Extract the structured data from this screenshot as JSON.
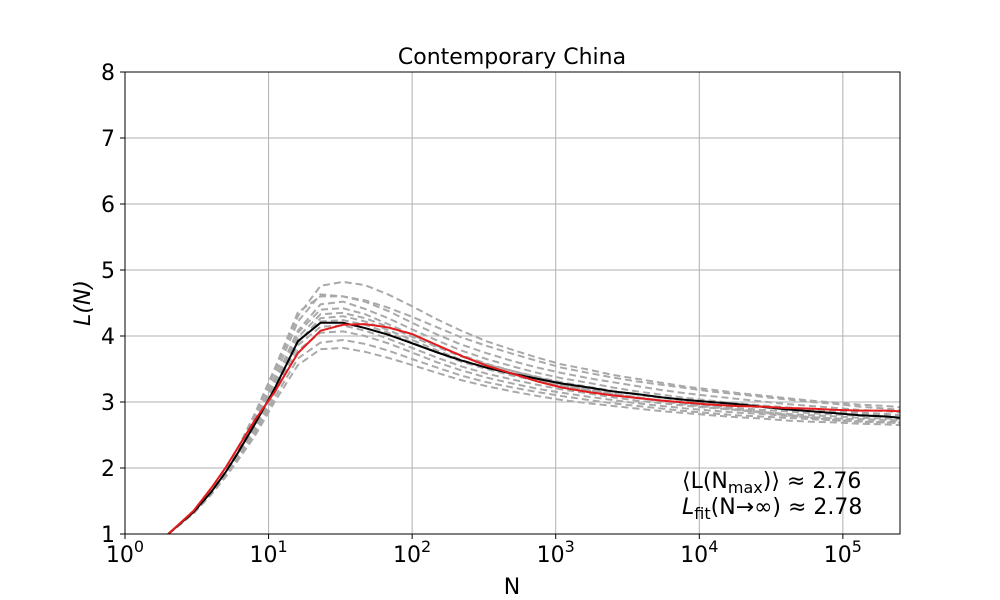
{
  "chart_data": {
    "type": "line",
    "title": "Contemporary China",
    "xlabel": "N",
    "ylabel": "L(N)",
    "xscale": "log",
    "xlim": [
      1,
      250000
    ],
    "ylim": [
      1,
      8
    ],
    "xticks": [
      {
        "value": 1,
        "base": "10",
        "exp": "0"
      },
      {
        "value": 10,
        "base": "10",
        "exp": "1"
      },
      {
        "value": 100,
        "base": "10",
        "exp": "2"
      },
      {
        "value": 1000,
        "base": "10",
        "exp": "3"
      },
      {
        "value": 10000,
        "base": "10",
        "exp": "4"
      },
      {
        "value": 100000,
        "base": "10",
        "exp": "5"
      }
    ],
    "yticks": [
      1,
      2,
      3,
      4,
      5,
      6,
      7,
      8
    ],
    "grid": true,
    "ensemble_color": "#a9a9a9",
    "mean_color": "#000000",
    "fit_color": "#e41a1c",
    "x": [
      2,
      3,
      4,
      5,
      6,
      8,
      11,
      16,
      23,
      33,
      47,
      68,
      100,
      150,
      220,
      330,
      500,
      750,
      1100,
      1700,
      2500,
      3700,
      5500,
      8200,
      12000,
      18000,
      27000,
      40000,
      60000,
      90000,
      130000,
      200000,
      250000
    ],
    "series": [
      {
        "role": "mean",
        "values": [
          1.0,
          1.33,
          1.64,
          1.93,
          2.2,
          2.66,
          3.2,
          3.92,
          4.2,
          4.2,
          4.12,
          4.02,
          3.89,
          3.75,
          3.63,
          3.52,
          3.43,
          3.35,
          3.28,
          3.22,
          3.16,
          3.12,
          3.07,
          3.03,
          3.0,
          2.97,
          2.93,
          2.89,
          2.86,
          2.83,
          2.8,
          2.78,
          2.76
        ]
      },
      {
        "role": "fit",
        "values": [
          1.0,
          1.35,
          1.7,
          2.0,
          2.28,
          2.72,
          3.15,
          3.74,
          4.08,
          4.17,
          4.18,
          4.13,
          4.03,
          3.86,
          3.7,
          3.55,
          3.43,
          3.31,
          3.22,
          3.15,
          3.1,
          3.06,
          3.02,
          2.99,
          2.96,
          2.94,
          2.93,
          2.91,
          2.9,
          2.88,
          2.87,
          2.87,
          2.86
        ]
      },
      {
        "role": "sample",
        "values": [
          1.0,
          1.33,
          1.66,
          1.97,
          2.25,
          2.78,
          3.46,
          4.3,
          4.76,
          4.82,
          4.77,
          4.63,
          4.45,
          4.25,
          4.08,
          3.92,
          3.79,
          3.67,
          3.57,
          3.49,
          3.41,
          3.35,
          3.29,
          3.23,
          3.19,
          3.14,
          3.1,
          3.06,
          3.02,
          2.99,
          2.96,
          2.94,
          2.92
        ]
      },
      {
        "role": "sample",
        "values": [
          1.0,
          1.33,
          1.65,
          1.95,
          2.22,
          2.72,
          3.38,
          4.22,
          4.63,
          4.6,
          4.52,
          4.38,
          4.2,
          4.02,
          3.87,
          3.74,
          3.62,
          3.52,
          3.44,
          3.36,
          3.3,
          3.24,
          3.18,
          3.13,
          3.09,
          3.05,
          3.01,
          2.97,
          2.94,
          2.91,
          2.88,
          2.86,
          2.84
        ]
      },
      {
        "role": "sample",
        "values": [
          1.0,
          1.33,
          1.65,
          1.94,
          2.2,
          2.68,
          3.32,
          4.08,
          4.48,
          4.52,
          4.41,
          4.27,
          4.1,
          3.93,
          3.78,
          3.65,
          3.54,
          3.44,
          3.36,
          3.29,
          3.22,
          3.16,
          3.11,
          3.06,
          3.02,
          2.98,
          2.95,
          2.92,
          2.89,
          2.86,
          2.84,
          2.82,
          2.8
        ]
      },
      {
        "role": "sample",
        "values": [
          1.0,
          1.32,
          1.64,
          1.92,
          2.18,
          2.64,
          3.26,
          3.98,
          4.33,
          4.35,
          4.27,
          4.14,
          3.99,
          3.83,
          3.69,
          3.57,
          3.47,
          3.38,
          3.3,
          3.23,
          3.17,
          3.11,
          3.06,
          3.02,
          2.98,
          2.95,
          2.92,
          2.89,
          2.86,
          2.84,
          2.82,
          2.8,
          2.79
        ]
      },
      {
        "role": "sample",
        "values": [
          1.0,
          1.32,
          1.63,
          1.91,
          2.16,
          2.61,
          3.22,
          3.92,
          4.22,
          4.24,
          4.17,
          4.05,
          3.9,
          3.75,
          3.61,
          3.5,
          3.4,
          3.32,
          3.25,
          3.18,
          3.12,
          3.07,
          3.02,
          2.98,
          2.95,
          2.91,
          2.88,
          2.86,
          2.83,
          2.81,
          2.79,
          2.78,
          2.77
        ]
      },
      {
        "role": "sample",
        "values": [
          1.0,
          1.32,
          1.63,
          1.9,
          2.15,
          2.59,
          3.18,
          3.86,
          4.14,
          4.16,
          4.08,
          3.96,
          3.82,
          3.67,
          3.54,
          3.43,
          3.34,
          3.26,
          3.19,
          3.13,
          3.07,
          3.02,
          2.98,
          2.94,
          2.91,
          2.88,
          2.85,
          2.82,
          2.8,
          2.78,
          2.76,
          2.75,
          2.74
        ]
      },
      {
        "role": "sample",
        "values": [
          1.0,
          1.31,
          1.62,
          1.89,
          2.13,
          2.56,
          3.13,
          3.78,
          4.05,
          4.07,
          4.0,
          3.89,
          3.75,
          3.6,
          3.48,
          3.37,
          3.28,
          3.2,
          3.14,
          3.08,
          3.03,
          2.98,
          2.94,
          2.9,
          2.87,
          2.84,
          2.82,
          2.79,
          2.77,
          2.75,
          2.74,
          2.73,
          2.72
        ]
      },
      {
        "role": "sample",
        "values": [
          1.0,
          1.31,
          1.61,
          1.87,
          2.11,
          2.52,
          3.06,
          3.66,
          3.9,
          3.94,
          3.88,
          3.78,
          3.65,
          3.52,
          3.4,
          3.3,
          3.22,
          3.15,
          3.09,
          3.03,
          2.98,
          2.94,
          2.9,
          2.86,
          2.83,
          2.8,
          2.78,
          2.76,
          2.74,
          2.72,
          2.71,
          2.7,
          2.7
        ]
      },
      {
        "role": "sample",
        "values": [
          1.0,
          1.31,
          1.6,
          1.86,
          2.09,
          2.48,
          3.0,
          3.56,
          3.8,
          3.82,
          3.76,
          3.67,
          3.56,
          3.44,
          3.33,
          3.24,
          3.16,
          3.09,
          3.03,
          2.98,
          2.94,
          2.9,
          2.86,
          2.83,
          2.8,
          2.77,
          2.75,
          2.72,
          2.7,
          2.69,
          2.67,
          2.66,
          2.65
        ]
      },
      {
        "role": "sample",
        "values": [
          1.0,
          1.34,
          1.67,
          1.98,
          2.27,
          2.82,
          3.5,
          4.36,
          4.6,
          4.6,
          4.54,
          4.43,
          4.29,
          4.13,
          3.98,
          3.85,
          3.73,
          3.62,
          3.52,
          3.44,
          3.37,
          3.31,
          3.26,
          3.21,
          3.16,
          3.12,
          3.08,
          3.04,
          3.0,
          2.97,
          2.93,
          2.9,
          2.88
        ]
      },
      {
        "role": "sample",
        "values": [
          1.0,
          1.32,
          1.64,
          1.93,
          2.19,
          2.66,
          3.3,
          4.05,
          4.4,
          4.42,
          4.33,
          4.18,
          4.02,
          3.85,
          3.71,
          3.58,
          3.47,
          3.37,
          3.28,
          3.2,
          3.13,
          3.07,
          3.02,
          2.97,
          2.93,
          2.89,
          2.85,
          2.81,
          2.77,
          2.74,
          2.71,
          2.69,
          2.68
        ]
      },
      {
        "role": "sample",
        "values": [
          1.0,
          1.32,
          1.63,
          1.9,
          2.15,
          2.6,
          3.2,
          3.9,
          4.27,
          4.3,
          4.22,
          4.09,
          3.94,
          3.78,
          3.64,
          3.52,
          3.42,
          3.33,
          3.25,
          3.18,
          3.12,
          3.06,
          3.01,
          2.96,
          2.92,
          2.88,
          2.84,
          2.8,
          2.76,
          2.72,
          2.7,
          2.69,
          2.69
        ]
      }
    ],
    "annotations": [
      {
        "pre": "⟨L(N",
        "sub": "max",
        "post": ")⟩ ≈ 2.76"
      },
      {
        "pre": "L",
        "sub": "fit",
        "post": "(N→∞) ≈ 2.78"
      }
    ]
  }
}
